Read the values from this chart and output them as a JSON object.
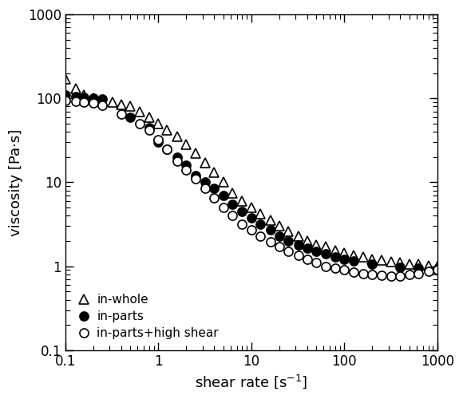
{
  "in_whole_x": [
    0.1,
    0.13,
    0.16,
    0.2,
    0.25,
    0.32,
    0.4,
    0.5,
    0.63,
    0.8,
    1.0,
    1.25,
    1.6,
    2.0,
    2.5,
    3.2,
    4.0,
    5.0,
    6.3,
    8.0,
    10.0,
    12.5,
    16.0,
    20.0,
    25.0,
    32.0,
    40.0,
    50.0,
    63.0,
    80.0,
    100.0,
    125.0,
    160.0,
    200.0,
    250.0,
    320.0,
    400.0,
    500.0,
    630.0,
    800.0,
    1000.0
  ],
  "in_whole_y": [
    170,
    130,
    110,
    100,
    95,
    90,
    85,
    80,
    70,
    60,
    50,
    42,
    35,
    28,
    22,
    17,
    13,
    10,
    7.5,
    6.0,
    5.0,
    4.2,
    3.5,
    3.0,
    2.6,
    2.3,
    2.0,
    1.8,
    1.7,
    1.55,
    1.45,
    1.35,
    1.28,
    1.22,
    1.18,
    1.13,
    1.1,
    1.07,
    1.05,
    1.02,
    1.0
  ],
  "in_parts_x": [
    0.1,
    0.13,
    0.16,
    0.2,
    0.25,
    0.5,
    0.8,
    1.0,
    1.25,
    1.6,
    2.0,
    2.5,
    3.2,
    4.0,
    5.0,
    6.3,
    8.0,
    10.0,
    12.5,
    16.0,
    20.0,
    25.0,
    32.0,
    40.0,
    50.0,
    63.0,
    80.0,
    100.0,
    125.0,
    200.0,
    400.0,
    630.0,
    1000.0
  ],
  "in_parts_y": [
    110,
    105,
    103,
    100,
    98,
    60,
    45,
    30,
    25,
    20,
    16,
    12,
    10,
    8.5,
    7.0,
    5.5,
    4.5,
    3.8,
    3.2,
    2.7,
    2.3,
    2.0,
    1.8,
    1.65,
    1.5,
    1.4,
    1.3,
    1.2,
    1.15,
    1.05,
    0.98,
    0.95,
    0.92
  ],
  "in_parts_hs_x": [
    0.1,
    0.13,
    0.16,
    0.2,
    0.25,
    0.4,
    0.63,
    0.8,
    1.0,
    1.25,
    1.6,
    2.0,
    2.5,
    3.2,
    4.0,
    5.0,
    6.3,
    8.0,
    10.0,
    12.5,
    16.0,
    20.0,
    25.0,
    32.0,
    40.0,
    50.0,
    63.0,
    80.0,
    100.0,
    125.0,
    160.0,
    200.0,
    250.0,
    320.0,
    400.0,
    500.0,
    630.0,
    800.0,
    1000.0
  ],
  "in_parts_hs_y": [
    95,
    92,
    90,
    88,
    82,
    65,
    50,
    42,
    32,
    25,
    18,
    14,
    11,
    8.5,
    6.5,
    5.0,
    4.0,
    3.2,
    2.7,
    2.3,
    1.95,
    1.7,
    1.5,
    1.35,
    1.2,
    1.1,
    1.0,
    0.95,
    0.9,
    0.85,
    0.82,
    0.79,
    0.78,
    0.77,
    0.76,
    0.79,
    0.82,
    0.87,
    0.9
  ],
  "xlabel": "shear rate [s$^{-1}$]",
  "ylabel": "viscosity [Pa·s]",
  "xlim": [
    0.1,
    1000
  ],
  "ylim": [
    0.1,
    1000
  ],
  "xtick_labels": [
    "0.1",
    "1",
    "10",
    "100",
    "1000"
  ],
  "xtick_vals": [
    0.1,
    1,
    10,
    100,
    1000
  ],
  "ytick_labels": [
    "0.1",
    "1",
    "10",
    "100",
    "1000"
  ],
  "ytick_vals": [
    0.1,
    1,
    10,
    100,
    1000
  ],
  "legend_labels": [
    "in-whole",
    "in-parts",
    "in-parts+high shear"
  ],
  "background_color": "#ffffff",
  "marker_color": "#000000"
}
